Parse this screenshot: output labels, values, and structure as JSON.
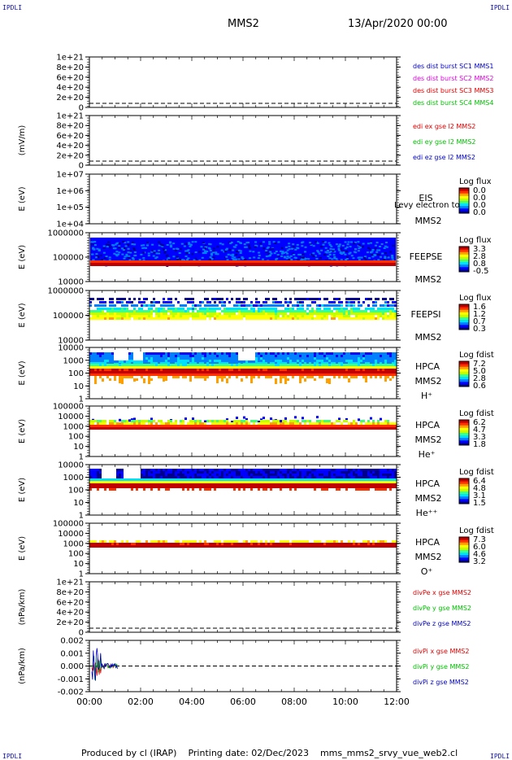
{
  "corner_labels": {
    "tl": "IPDLI",
    "tr": "IPDLI",
    "bl": "IPDLI",
    "br": "IPDLI"
  },
  "header": {
    "spacecraft": "MMS2",
    "datetime": "13/Apr/2020 00:00"
  },
  "footer": {
    "text": "Produced by cl (IRAP)    Printing date: 02/Dec/2023    mms_mms2_srvy_vue_web2.cl"
  },
  "time_axis": {
    "ticks": [
      "00:00",
      "02:00",
      "04:00",
      "06:00",
      "08:00",
      "10:00",
      "12:00"
    ],
    "range_hours": [
      0,
      12
    ]
  },
  "colors": {
    "red": "#e00000",
    "magenta": "#e000e0",
    "green": "#00c000",
    "blue": "#0000c0",
    "colormap": [
      "#00008c",
      "#0000ff",
      "#0080ff",
      "#00e0ff",
      "#40ff80",
      "#c0ff00",
      "#ffff00",
      "#ffa000",
      "#ff3000",
      "#c00000"
    ]
  },
  "chart_data": [
    {
      "type": "line",
      "name": "des dist burst",
      "ylabel": "",
      "ytick_labels": [
        "1e+21",
        "8e+20",
        "6e+20",
        "4e+20",
        "2e+20",
        "0"
      ],
      "ylim": [
        0,
        1e+21
      ],
      "zero_line": "dashed",
      "legend": [
        {
          "label": "des dist burst SC1 MMS1",
          "color": "#0000c0"
        },
        {
          "label": "des dist burst SC2 MMS2",
          "color": "#e000e0"
        },
        {
          "label": "des dist burst SC3 MMS3",
          "color": "#e00000"
        },
        {
          "label": "des dist burst SC4 MMS4",
          "color": "#00c000"
        }
      ]
    },
    {
      "type": "line",
      "name": "edi e-field",
      "ylabel": "(mV/m)",
      "ytick_labels": [
        "1e+21",
        "8e+20",
        "6e+20",
        "4e+20",
        "2e+20",
        "0"
      ],
      "ylim": [
        0,
        1e+21
      ],
      "zero_line": "dashed",
      "legend": [
        {
          "label": "edi ex gse l2 MMS2",
          "color": "#e00000"
        },
        {
          "label": "edi ey gse l2 MMS2",
          "color": "#00c000"
        },
        {
          "label": "edi ez gse l2 MMS2",
          "color": "#0000c0"
        }
      ]
    },
    {
      "type": "heatmap",
      "name": "EIS",
      "ylabel": "E (eV)",
      "ytick_labels": [
        "1e+07",
        "1e+06",
        "1e+05",
        "1e+04"
      ],
      "ylim": [
        10000.0,
        10000000.0
      ],
      "yscale": "log",
      "instrument": [
        "EIS",
        "MMS2"
      ],
      "overlay_text": "Levy electron to",
      "cbar_title": "Log flux",
      "cbar_ticks": [
        "0.0",
        "0.0",
        "0.0",
        "0.0"
      ],
      "pattern": "empty"
    },
    {
      "type": "heatmap",
      "name": "FEEPS electrons",
      "ylabel": "E (eV)",
      "ytick_labels": [
        "1000000",
        "100000",
        "10000"
      ],
      "ylim": [
        10000.0,
        1000000.0
      ],
      "yscale": "log",
      "instrument": [
        "FEEPSE",
        "MMS2"
      ],
      "cbar_title": "Log flux",
      "cbar_ticks": [
        "3.3",
        "2.8",
        "0.8",
        "-0.5"
      ],
      "pattern": "feepse"
    },
    {
      "type": "heatmap",
      "name": "FEEPS ions",
      "ylabel": "E (eV)",
      "ytick_labels": [
        "1000000",
        "100000",
        "10000"
      ],
      "ylim": [
        10000.0,
        1000000.0
      ],
      "yscale": "log",
      "instrument": [
        "FEEPSI",
        "MMS2"
      ],
      "cbar_title": "Log flux",
      "cbar_ticks": [
        "1.6",
        "1.2",
        "0.7",
        "0.3"
      ],
      "pattern": "feepsi"
    },
    {
      "type": "heatmap",
      "name": "HPCA H+",
      "ylabel": "E (eV)",
      "ytick_labels": [
        "10000",
        "1000",
        "100",
        "10",
        "1"
      ],
      "ylim": [
        1,
        40000.0
      ],
      "yscale": "log",
      "instrument": [
        "HPCA",
        "MMS2",
        "H⁺"
      ],
      "cbar_title": "Log fdist",
      "cbar_ticks": [
        "7.2",
        "5.0",
        "2.8",
        "0.6"
      ],
      "pattern": "hpca_h"
    },
    {
      "type": "heatmap",
      "name": "HPCA He+",
      "ylabel": "E (eV)",
      "ytick_labels": [
        "100000",
        "10000",
        "1000",
        "100",
        "10",
        "1"
      ],
      "ylim": [
        1,
        100000.0
      ],
      "yscale": "log",
      "instrument": [
        "HPCA",
        "MMS2",
        "He⁺"
      ],
      "cbar_title": "Log fdist",
      "cbar_ticks": [
        "6.2",
        "4.7",
        "3.3",
        "1.8"
      ],
      "pattern": "hpca_he"
    },
    {
      "type": "heatmap",
      "name": "HPCA He++",
      "ylabel": "E (eV)",
      "ytick_labels": [
        "10000",
        "1000",
        "100",
        "10",
        "1"
      ],
      "ylim": [
        1,
        40000.0
      ],
      "yscale": "log",
      "instrument": [
        "HPCA",
        "MMS2",
        "He⁺⁺"
      ],
      "cbar_title": "Log fdist",
      "cbar_ticks": [
        "6.4",
        "4.8",
        "3.1",
        "1.5"
      ],
      "pattern": "hpca_hepp"
    },
    {
      "type": "heatmap",
      "name": "HPCA O+",
      "ylabel": "E (eV)",
      "ytick_labels": [
        "100000",
        "10000",
        "1000",
        "100",
        "10",
        "1"
      ],
      "ylim": [
        1,
        100000.0
      ],
      "yscale": "log",
      "instrument": [
        "HPCA",
        "MMS2",
        "O⁺"
      ],
      "cbar_title": "Log fdist",
      "cbar_ticks": [
        "7.3",
        "6.0",
        "4.6",
        "3.2"
      ],
      "pattern": "hpca_o"
    },
    {
      "type": "line",
      "name": "div Pe",
      "ylabel": "(nPa/km)",
      "ytick_labels": [
        "1e+21",
        "8e+20",
        "6e+20",
        "4e+20",
        "2e+20",
        "0"
      ],
      "ylim": [
        0,
        1e+21
      ],
      "zero_line": "dashed",
      "legend": [
        {
          "label": "divPe x gse MMS2",
          "color": "#e00000"
        },
        {
          "label": "divPe y gse MMS2",
          "color": "#00c000"
        },
        {
          "label": "divPe z gse MMS2",
          "color": "#0000c0"
        }
      ]
    },
    {
      "type": "line",
      "name": "div Pi",
      "ylabel": "(nPa/km)",
      "ytick_labels": [
        "0.002",
        "0.001",
        "0.000",
        "-0.001",
        "-0.002"
      ],
      "ylim": [
        -0.0025,
        0.0025
      ],
      "zero_line": "dashed",
      "data_span_hours": [
        0,
        1.1
      ],
      "legend": [
        {
          "label": "divPi x gse MMS2",
          "color": "#e00000"
        },
        {
          "label": "divPi y gse MMS2",
          "color": "#00c000"
        },
        {
          "label": "divPi z gse MMS2",
          "color": "#0000c0"
        }
      ]
    }
  ]
}
